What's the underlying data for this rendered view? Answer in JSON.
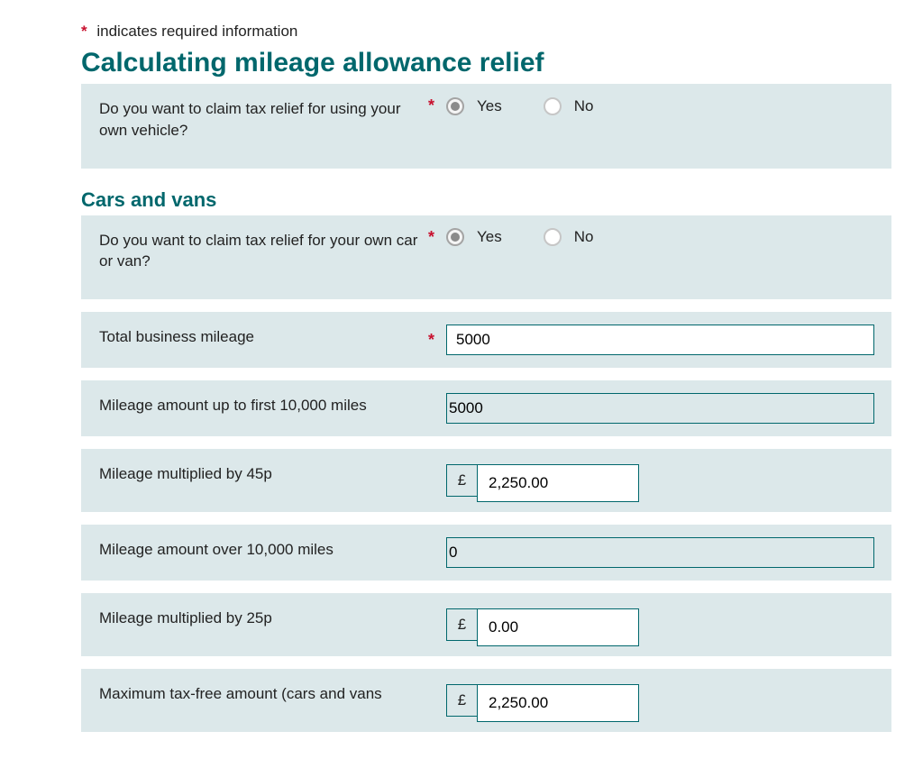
{
  "colors": {
    "heading": "#00676c",
    "required": "#c8102e",
    "row_bg": "#dce8ea",
    "border": "#00676c"
  },
  "required_note": {
    "asterisk": "*",
    "text": "indicates required information"
  },
  "section1": {
    "title": "Calculating mileage allowance relief",
    "q1": {
      "label": "Do you want to claim tax relief for using your own vehicle?",
      "yes": "Yes",
      "no": "No",
      "selected": "yes"
    }
  },
  "section2": {
    "title": "Cars and vans",
    "q1": {
      "label": "Do you want to claim tax relief for your own car or van?",
      "yes": "Yes",
      "no": "No",
      "selected": "yes"
    },
    "total_mileage": {
      "label": "Total business mileage",
      "value": "5000"
    },
    "up_to_10k": {
      "label": "Mileage amount up to first 10,000 miles",
      "value": "5000"
    },
    "mult_45p": {
      "label": "Mileage multiplied by 45p",
      "currency": "£",
      "value": "2,250.00"
    },
    "over_10k": {
      "label": "Mileage amount over 10,000 miles",
      "value": "0"
    },
    "mult_25p": {
      "label": "Mileage multiplied by 25p",
      "currency": "£",
      "value": "0.00"
    },
    "max_taxfree": {
      "label": "Maximum tax-free amount (cars and vans",
      "currency": "£",
      "value": "2,250.00"
    }
  }
}
